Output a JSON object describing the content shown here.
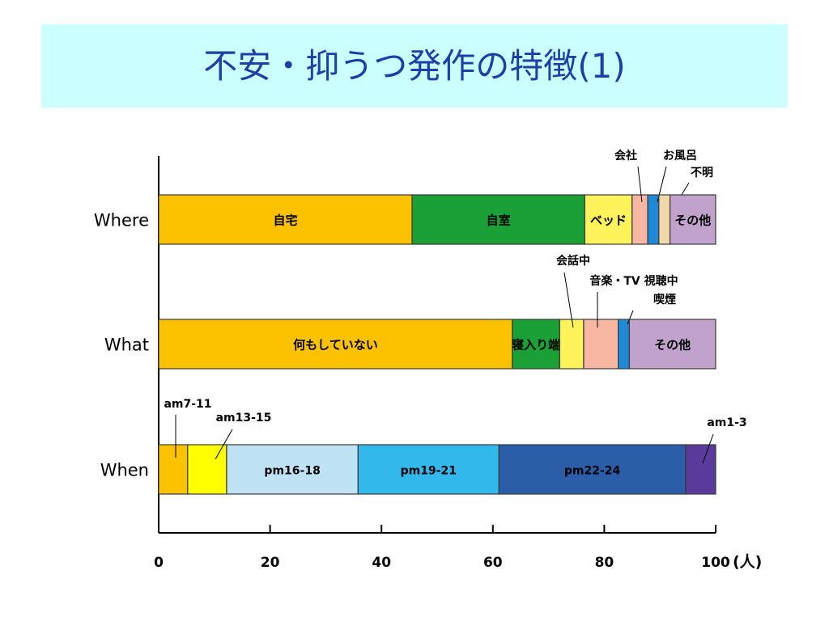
{
  "page": {
    "title": "不安・抑うつ発作の特徴(1)"
  },
  "chart_data": {
    "type": "bar",
    "orientation": "horizontal",
    "stacked": true,
    "xlim": [
      0,
      100
    ],
    "x_ticks": [
      "0",
      "20",
      "40",
      "60",
      "80",
      "100"
    ],
    "x_unit": "(人)",
    "bars": [
      {
        "category": "Where",
        "segments": [
          {
            "label": "自宅",
            "value": 45.5,
            "color": "#fcc200"
          },
          {
            "label": "自室",
            "value": 31,
            "color": "#1aa037"
          },
          {
            "label": "ベッド",
            "value": 8.5,
            "color": "#fff35c"
          },
          {
            "label": "会社",
            "value": 2.8,
            "color": "#f7b7a3"
          },
          {
            "label": "お風呂",
            "value": 2,
            "color": "#1e8ad6"
          },
          {
            "label": "不明",
            "value": 2,
            "color": "#f0d8a8"
          },
          {
            "label": "その他",
            "value": 8.2,
            "color": "#c0a2cc"
          }
        ]
      },
      {
        "category": "What",
        "segments": [
          {
            "label": "何もしていない",
            "value": 63.5,
            "color": "#fcc200"
          },
          {
            "label": "寝入り端",
            "value": 8.5,
            "color": "#1aa037"
          },
          {
            "label": "会話中",
            "value": 4.3,
            "color": "#fff35c"
          },
          {
            "label": "音楽・TV 視聴中",
            "value": 6.2,
            "color": "#f7b7a3"
          },
          {
            "label": "喫煙",
            "value": 2,
            "color": "#1e8ad6"
          },
          {
            "label": "その他",
            "value": 15.5,
            "color": "#c0a2cc"
          }
        ]
      },
      {
        "category": "When",
        "segments": [
          {
            "label": "am7-11",
            "value": 5.2,
            "color": "#fcc200"
          },
          {
            "label": "am13-15",
            "value": 7,
            "color": "#ffff00"
          },
          {
            "label": "pm16-18",
            "value": 23.6,
            "color": "#bfe3f5"
          },
          {
            "label": "pm19-21",
            "value": 25.3,
            "color": "#33b8eb"
          },
          {
            "label": "pm22-24",
            "value": 33.5,
            "color": "#2a5ea8"
          },
          {
            "label": "am1-3",
            "value": 5.4,
            "color": "#5a3a9a"
          }
        ]
      }
    ]
  }
}
